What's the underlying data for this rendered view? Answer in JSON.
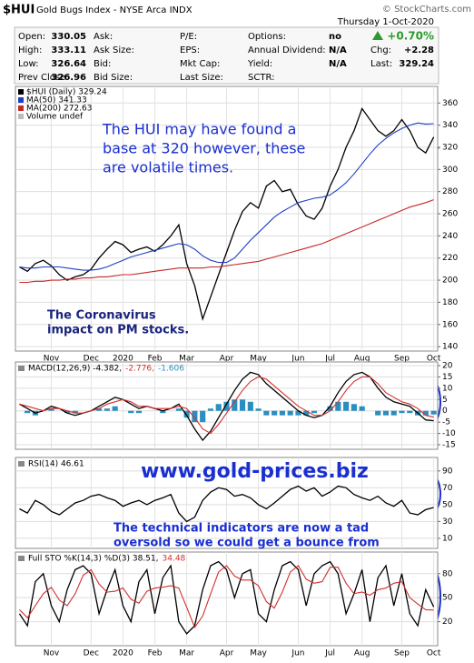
{
  "header": {
    "symbol": "$HUI",
    "name": "Gold Bugs Index - NYSE Arca INDX",
    "copyright": "© StockCharts.com",
    "date": "Thursday 1-Oct-2020",
    "rows": [
      [
        {
          "label": "Open:",
          "value": "330.05"
        },
        {
          "label": "Ask:"
        },
        {
          "label": "P/E:"
        },
        {
          "label": "Options:",
          "value": "no"
        },
        {
          "value": "+0.70%"
        }
      ],
      [
        {
          "label": "High:",
          "value": "333.11"
        },
        {
          "label": "Ask Size:"
        },
        {
          "label": "EPS:"
        },
        {
          "label": "Annual Dividend:",
          "value": "N/A"
        },
        {
          "label": "Chg:",
          "value": "+2.28"
        }
      ],
      [
        {
          "label": "Low:",
          "value": "326.64"
        },
        {
          "label": "Bid:"
        },
        {
          "label": "Mkt Cap:"
        },
        {
          "label": "Yield:",
          "value": "N/A"
        },
        {
          "label": "Last:",
          "value": "329.24"
        }
      ],
      [
        {
          "label": "Prev Close:",
          "value": "326.96"
        },
        {
          "label": "Bid Size:"
        },
        {
          "label": "Last Size:"
        },
        {
          "label": "SCTR:"
        }
      ]
    ]
  },
  "chart_data": [
    {
      "type": "line",
      "grid": true,
      "categories": [
        null,
        null,
        null,
        null,
        "Nov",
        null,
        null,
        null,
        null,
        "Dec",
        null,
        null,
        null,
        "2020",
        null,
        null,
        null,
        "Feb",
        null,
        null,
        null,
        "Mar",
        null,
        null,
        null,
        null,
        "Apr",
        null,
        null,
        null,
        "May",
        null,
        null,
        null,
        null,
        "Jun",
        null,
        null,
        null,
        "Jul",
        null,
        null,
        null,
        "Aug",
        null,
        null,
        null,
        null,
        "Sep",
        null,
        null,
        null,
        "Oct"
      ],
      "ylim": [
        136,
        375
      ],
      "yticks": [
        140,
        160,
        180,
        200,
        220,
        240,
        260,
        280,
        300,
        320,
        340,
        360
      ],
      "legend_extra": "Volume undef",
      "series": [
        {
          "name": "$HUI (Daily) 329.24",
          "color": "#000000",
          "values": [
            212,
            208,
            215,
            218,
            213,
            205,
            200,
            203,
            205,
            210,
            220,
            228,
            235,
            232,
            225,
            228,
            230,
            226,
            232,
            240,
            250,
            215,
            195,
            165,
            185,
            205,
            225,
            245,
            262,
            270,
            265,
            285,
            290,
            280,
            282,
            268,
            258,
            255,
            265,
            285,
            300,
            320,
            335,
            355,
            345,
            335,
            330,
            335,
            345,
            335,
            320,
            315,
            329.24
          ]
        },
        {
          "name": "MA(50) 341.33",
          "color": "#1f3fbf",
          "values": [
            212,
            211,
            211,
            212,
            212,
            212,
            211,
            210,
            209,
            209,
            210,
            212,
            215,
            218,
            221,
            223,
            225,
            227,
            229,
            231,
            233,
            232,
            228,
            222,
            218,
            216,
            216,
            220,
            228,
            236,
            243,
            250,
            257,
            262,
            266,
            270,
            272,
            274,
            275,
            277,
            282,
            288,
            296,
            305,
            314,
            322,
            328,
            333,
            337,
            340,
            342,
            341,
            341.33
          ]
        },
        {
          "name": "MA(200) 272.63",
          "color": "#c62828",
          "values": [
            198,
            198,
            199,
            199,
            200,
            200,
            201,
            201,
            202,
            202,
            203,
            203,
            204,
            205,
            205,
            206,
            207,
            208,
            209,
            210,
            211,
            211,
            211,
            211,
            212,
            212,
            213,
            214,
            215,
            216,
            217,
            219,
            221,
            223,
            225,
            227,
            229,
            231,
            233,
            236,
            239,
            242,
            245,
            248,
            251,
            254,
            257,
            260,
            263,
            266,
            268,
            270,
            272.63
          ]
        }
      ],
      "annotations": [
        {
          "lines": [
            "The HUI may have found a",
            "base at 320 however, these",
            "are volatile times."
          ]
        },
        {
          "lines": [
            "The Coronavirus",
            "impact on PM stocks."
          ]
        }
      ]
    },
    {
      "type": "line",
      "grid": true,
      "ylim": [
        -17,
        21.6
      ],
      "yticks": [
        20,
        15,
        10,
        5,
        0,
        -5,
        -10,
        -15
      ],
      "series": [
        {
          "name": "MACD(12,26,9) -4.382,",
          "color": "#000000",
          "values": [
            3,
            1,
            -1,
            0,
            2,
            1,
            -1,
            -2,
            -1,
            0,
            2,
            4,
            6,
            5,
            3,
            1,
            2,
            1,
            0,
            1,
            3,
            -2,
            -8,
            -13,
            -9,
            -3,
            3,
            9,
            14,
            17,
            16,
            12,
            9,
            6,
            3,
            0,
            -2,
            -3,
            -2,
            2,
            8,
            13,
            16,
            17,
            15,
            10,
            6,
            4,
            3,
            2,
            -1,
            -4,
            -4.382
          ]
        },
        {
          "name": "-2.776,",
          "color": "#d32f2f",
          "values": [
            3,
            2,
            1,
            0,
            1,
            1,
            0,
            -1,
            -1,
            0,
            1,
            3,
            4,
            5,
            4,
            2,
            2,
            1,
            1,
            1,
            2,
            1,
            -3,
            -8,
            -10,
            -6,
            -1,
            4,
            9,
            13,
            15,
            14,
            11,
            8,
            5,
            2,
            0,
            -2,
            -2,
            0,
            4,
            9,
            13,
            15,
            15,
            12,
            8,
            6,
            4,
            3,
            1,
            -2,
            -2.776
          ]
        },
        {
          "name": "-1.606",
          "color": "#2a8fc0",
          "kind": "bar",
          "values": [
            0,
            -1,
            -2,
            0,
            1,
            0,
            -1,
            -1,
            0,
            0,
            1,
            1,
            2,
            0,
            -1,
            -1,
            0,
            0,
            -1,
            0,
            1,
            -3,
            -5,
            -5,
            1,
            3,
            4,
            5,
            5,
            4,
            1,
            -2,
            -2,
            -2,
            -2,
            -2,
            -2,
            -1,
            0,
            2,
            4,
            4,
            3,
            2,
            0,
            -2,
            -2,
            -2,
            -1,
            -1,
            -2,
            -2,
            -1.606
          ]
        }
      ]
    },
    {
      "type": "line",
      "grid": true,
      "ylim": [
        -2,
        106
      ],
      "yticks": [
        90,
        70,
        50,
        30,
        10
      ],
      "series": [
        {
          "name": "RSI(14) 46.61",
          "color": "#000000",
          "values": [
            45,
            40,
            55,
            50,
            42,
            38,
            45,
            52,
            55,
            60,
            62,
            58,
            55,
            48,
            52,
            55,
            50,
            55,
            58,
            62,
            40,
            30,
            35,
            55,
            65,
            70,
            68,
            60,
            62,
            58,
            50,
            45,
            52,
            60,
            68,
            72,
            66,
            70,
            60,
            65,
            72,
            70,
            62,
            58,
            55,
            60,
            52,
            48,
            55,
            40,
            38,
            44,
            46.61
          ]
        }
      ],
      "annotations": [
        {
          "lines": [
            "www.gold-prices.biz"
          ]
        },
        {
          "lines": [
            "The technical indicators are now a tad",
            "oversold so we could get a bounce from",
            "here"
          ]
        }
      ]
    },
    {
      "type": "line",
      "grid": true,
      "categories": [
        null,
        null,
        null,
        null,
        "Nov",
        null,
        null,
        null,
        null,
        "Dec",
        null,
        null,
        null,
        "2020",
        null,
        null,
        null,
        "Feb",
        null,
        null,
        null,
        "Mar",
        null,
        null,
        null,
        null,
        "Apr",
        null,
        null,
        null,
        "May",
        null,
        null,
        null,
        null,
        "Jun",
        null,
        null,
        null,
        "Jul",
        null,
        null,
        null,
        "Aug",
        null,
        null,
        null,
        null,
        "Sep",
        null,
        null,
        null,
        "Oct"
      ],
      "ylim": [
        -10,
        107
      ],
      "yticks": [
        80,
        50,
        20
      ],
      "series": [
        {
          "name": "Full STO %K(14,3) %D(3) 38.51,",
          "color": "#000000",
          "values": [
            30,
            15,
            70,
            80,
            40,
            20,
            60,
            85,
            90,
            80,
            30,
            60,
            85,
            40,
            20,
            70,
            85,
            30,
            75,
            90,
            20,
            5,
            15,
            60,
            90,
            95,
            85,
            50,
            80,
            85,
            30,
            20,
            60,
            90,
            95,
            85,
            40,
            80,
            90,
            95,
            80,
            30,
            55,
            85,
            20,
            75,
            90,
            40,
            80,
            30,
            15,
            60,
            38.51
          ]
        },
        {
          "name": "34.48",
          "color": "#d32f2f",
          "values": [
            35,
            25,
            40,
            55,
            63,
            47,
            40,
            55,
            78,
            85,
            67,
            57,
            58,
            62,
            48,
            43,
            58,
            62,
            63,
            65,
            62,
            38,
            13,
            27,
            55,
            82,
            90,
            77,
            72,
            72,
            65,
            45,
            37,
            57,
            82,
            90,
            73,
            68,
            70,
            88,
            88,
            68,
            55,
            57,
            53,
            60,
            62,
            68,
            70,
            50,
            42,
            35,
            34.48
          ]
        }
      ]
    }
  ]
}
